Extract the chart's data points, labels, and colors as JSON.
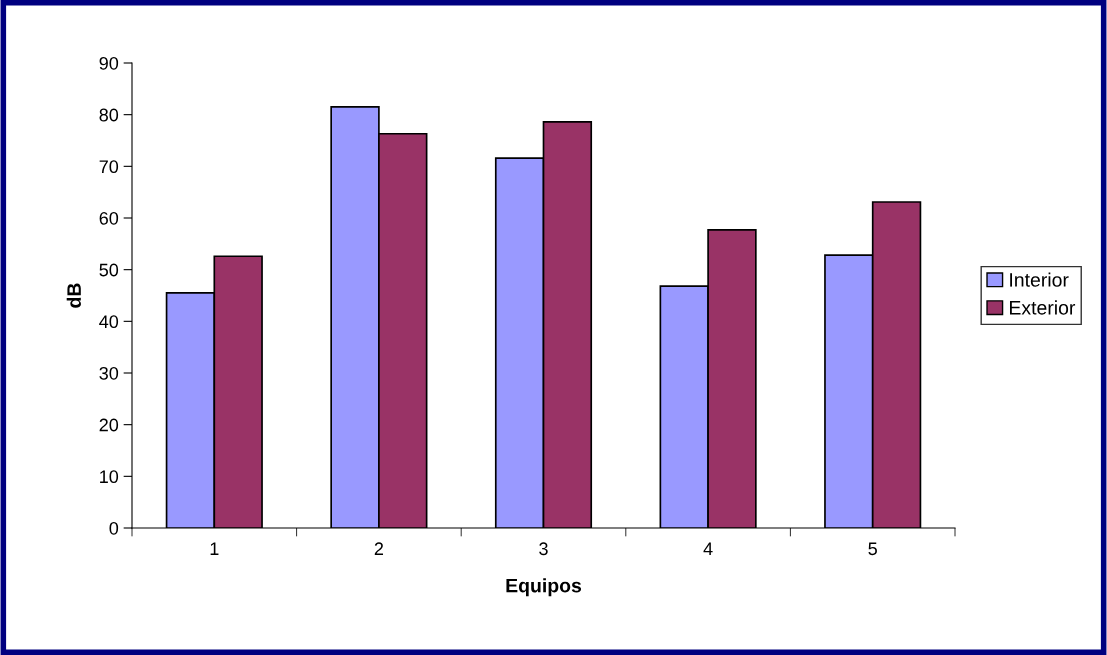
{
  "chart_data": {
    "type": "bar",
    "xlabel": "Equipos",
    "ylabel": "dB",
    "categories": [
      "1",
      "2",
      "3",
      "4",
      "5"
    ],
    "series": [
      {
        "name": "Interior",
        "color": "#9999ff",
        "values": [
          45.5,
          81.5,
          71.6,
          46.8,
          52.8
        ]
      },
      {
        "name": "Exterior",
        "color": "#993366",
        "values": [
          52.6,
          76.3,
          78.6,
          57.7,
          63.1
        ]
      }
    ],
    "ylim": [
      0,
      90
    ],
    "yticks": [
      0,
      10,
      20,
      30,
      40,
      50,
      60,
      70,
      80,
      90
    ],
    "grid": false,
    "legend": "right"
  }
}
